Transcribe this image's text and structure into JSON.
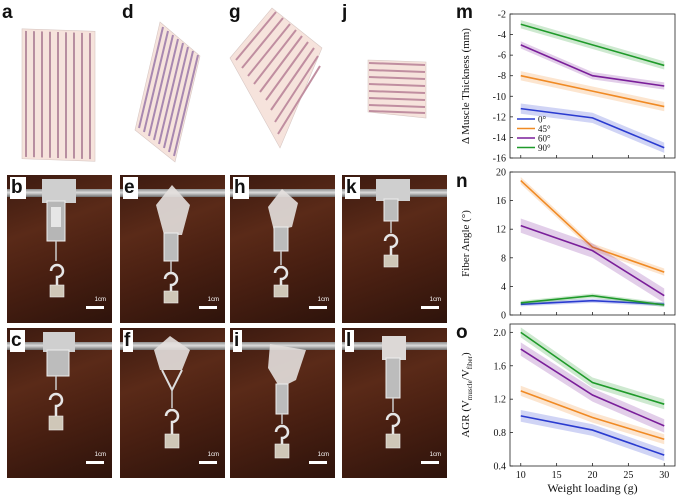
{
  "panel_labels": {
    "a": "a",
    "b": "b",
    "c": "c",
    "d": "d",
    "e": "e",
    "f": "f",
    "g": "g",
    "h": "h",
    "i": "i",
    "j": "j",
    "k": "k",
    "l": "l",
    "m": "m",
    "n": "n",
    "o": "o"
  },
  "scale_bar_label": "1cm",
  "colors": {
    "blue": "#2a3bd0",
    "orange": "#f08a24",
    "purple": "#7a1f9a",
    "green": "#1f9a2a"
  },
  "chart_data": [
    {
      "panel": "m",
      "type": "line",
      "title": "",
      "xlabel": "",
      "ylabel": "Δ Muscle Thickness (mm)",
      "x": [
        10,
        20,
        30
      ],
      "ylim": [
        -16,
        -2
      ],
      "yticks": [
        -2,
        -4,
        -6,
        -8,
        -10,
        -12,
        -14,
        -16
      ],
      "legend": [
        "0°",
        "45°",
        "60°",
        "90°"
      ],
      "series": [
        {
          "name": "0°",
          "color": "#2a3bd0",
          "values": [
            -11.2,
            -12.1,
            -15.0
          ],
          "band": 0.5
        },
        {
          "name": "45°",
          "color": "#f08a24",
          "values": [
            -8.0,
            -9.5,
            -11.0
          ],
          "band": 0.45
        },
        {
          "name": "60°",
          "color": "#7a1f9a",
          "values": [
            -5.0,
            -8.0,
            -9.0
          ],
          "band": 0.35
        },
        {
          "name": "90°",
          "color": "#1f9a2a",
          "values": [
            -3.0,
            -5.0,
            -7.0
          ],
          "band": 0.4
        }
      ]
    },
    {
      "panel": "n",
      "type": "line",
      "title": "",
      "xlabel": "",
      "ylabel": "Fiber Angle (°)",
      "x": [
        10,
        20,
        30
      ],
      "ylim": [
        0,
        20
      ],
      "yticks": [
        0,
        4,
        8,
        12,
        16,
        20
      ],
      "series": [
        {
          "name": "0°",
          "color": "#2a3bd0",
          "values": [
            1.5,
            2.0,
            1.5
          ],
          "band": 0.3
        },
        {
          "name": "45°",
          "color": "#f08a24",
          "values": [
            18.8,
            9.5,
            6.0
          ],
          "band": 0.5
        },
        {
          "name": "60°",
          "color": "#7a1f9a",
          "values": [
            12.5,
            9.0,
            2.7
          ],
          "band": 1.0
        },
        {
          "name": "90°",
          "color": "#1f9a2a",
          "values": [
            1.7,
            2.7,
            1.4
          ],
          "band": 0.3
        }
      ]
    },
    {
      "panel": "o",
      "type": "line",
      "title": "",
      "xlabel": "Weight loading (g)",
      "ylabel_main": "AGR (V",
      "ylabel_sub1": "muscle",
      "ylabel_mid": "/V",
      "ylabel_sub2": "fiber",
      "ylabel_end": ")",
      "x": [
        10,
        20,
        30
      ],
      "xticks": [
        10,
        15,
        20,
        25,
        30
      ],
      "ylim": [
        0.4,
        2.1
      ],
      "yticks": [
        0.4,
        0.8,
        1.2,
        1.6,
        2.0
      ],
      "series": [
        {
          "name": "0°",
          "color": "#2a3bd0",
          "values": [
            1.0,
            0.83,
            0.53
          ],
          "band": 0.07
        },
        {
          "name": "45°",
          "color": "#f08a24",
          "values": [
            1.3,
            0.98,
            0.72
          ],
          "band": 0.06
        },
        {
          "name": "60°",
          "color": "#7a1f9a",
          "values": [
            1.8,
            1.25,
            0.88
          ],
          "band": 0.08
        },
        {
          "name": "90°",
          "color": "#1f9a2a",
          "values": [
            2.0,
            1.4,
            1.14
          ],
          "band": 0.06
        }
      ]
    }
  ]
}
